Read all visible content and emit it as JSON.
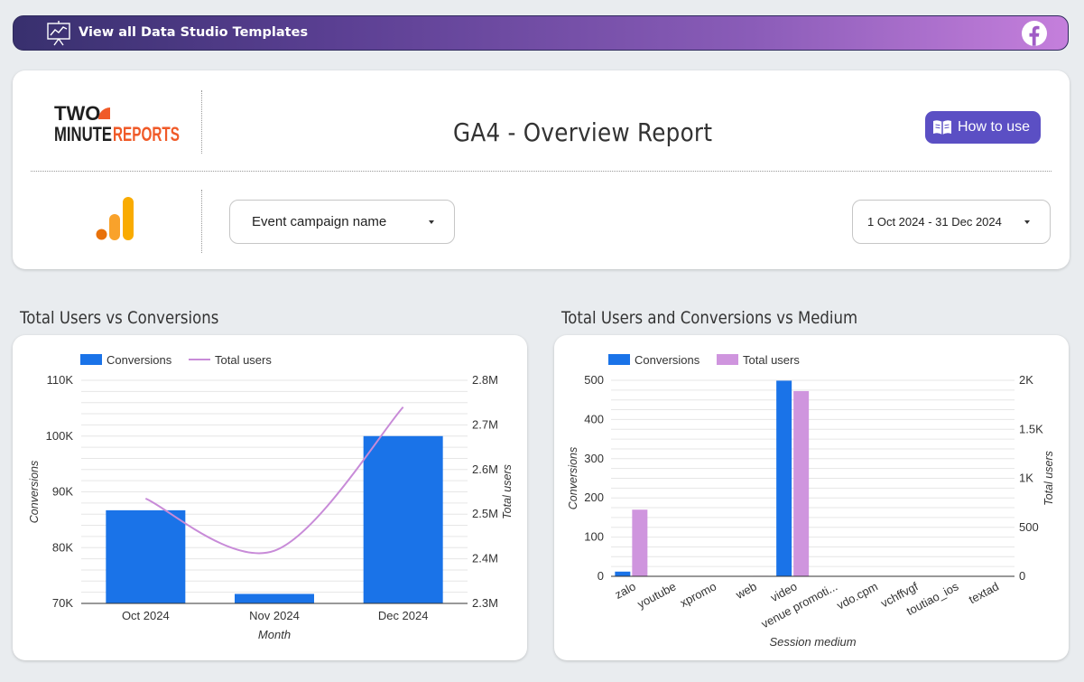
{
  "banner": {
    "text": "View all Data Studio Templates",
    "icon": "presentation-chart-icon",
    "social_icon": "facebook-icon"
  },
  "header": {
    "logo_text_top": "TWO",
    "logo_text_bottom_left": "MINUTE",
    "logo_text_bottom_right": "REPORTS",
    "title": "GA4 - Overview Report",
    "how_to_use": "How to use",
    "ga_icon": "google-analytics-icon"
  },
  "filters": {
    "campaign": "Event campaign name",
    "date_range": "1 Oct 2024 - 31 Dec 2024"
  },
  "colors": {
    "conversions": "#1a73e8",
    "total_users_line": "#c88bd8",
    "total_users_bar": "#cf95de",
    "banner_start": "#38306e",
    "banner_end": "#c57fdc",
    "button": "#5b4fc4"
  },
  "chart1": {
    "section_title": "Total Users vs Conversions"
  },
  "chart2": {
    "section_title": "Total Users and Conversions vs Medium"
  },
  "chart_data": [
    {
      "type": "bar",
      "title": "Total Users vs Conversions",
      "xlabel": "Month",
      "ylabel": "Conversions",
      "y2label": "Total users",
      "categories": [
        "Oct 2024",
        "Nov 2024",
        "Dec 2024"
      ],
      "series": [
        {
          "name": "Conversions",
          "kind": "bar",
          "axis": "left",
          "values": [
            86700,
            71700,
            100000
          ]
        },
        {
          "name": "Total users",
          "kind": "line",
          "axis": "right",
          "values": [
            2535000,
            2418000,
            2740000
          ]
        }
      ],
      "ylim": [
        70000,
        110000
      ],
      "y2lim": [
        2300000,
        2800000
      ],
      "yticks": [
        "70K",
        "80K",
        "90K",
        "100K",
        "110K"
      ],
      "y2ticks": [
        "2.3M",
        "2.4M",
        "2.5M",
        "2.6M",
        "2.7M",
        "2.8M"
      ],
      "legend": "top-left",
      "grid": true
    },
    {
      "type": "bar",
      "title": "Total Users and Conversions vs Medium",
      "xlabel": "Session medium",
      "ylabel": "Conversions",
      "y2label": "Total users",
      "categories": [
        "zalo",
        "youtube",
        "xpromo",
        "web",
        "video",
        "venue promoti...",
        "vdo.cpm",
        "vchffvgf",
        "toutiao_ios",
        "textad"
      ],
      "series": [
        {
          "name": "Conversions",
          "kind": "bar",
          "axis": "left",
          "values": [
            12,
            0,
            0,
            0,
            499,
            0,
            0,
            0,
            0,
            0
          ]
        },
        {
          "name": "Total users",
          "kind": "bar",
          "axis": "right",
          "values": [
            680,
            0,
            0,
            5,
            1890,
            0,
            0,
            0,
            0,
            0
          ]
        }
      ],
      "ylim": [
        0,
        500
      ],
      "y2lim": [
        0,
        2000
      ],
      "yticks": [
        "0",
        "100",
        "200",
        "300",
        "400",
        "500"
      ],
      "y2ticks": [
        "0",
        "500",
        "1K",
        "1.5K",
        "2K"
      ],
      "legend": "top-left",
      "grid": true
    }
  ]
}
